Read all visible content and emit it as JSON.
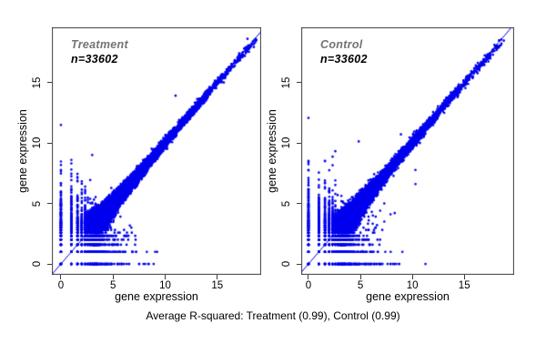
{
  "figure": {
    "background": "#ffffff",
    "caption": "Average R-squared: Treatment (0.99), Control (0.99)"
  },
  "chart_data": [
    {
      "type": "scatter",
      "title": "Treatment",
      "title_color": "#737373",
      "n_label": "n=33602",
      "n_points": 33602,
      "r_squared": 0.99,
      "xlabel": "gene expression",
      "ylabel": "gene expression",
      "x_ticks": [
        0,
        5,
        10,
        15
      ],
      "y_ticks": [
        0,
        5,
        10,
        15
      ],
      "xlim": [
        -0.87,
        19.21
      ],
      "ylim": [
        -0.9,
        19.55
      ],
      "point_color": "#0000ee",
      "line_color": "#0000ee",
      "identity_line": true,
      "seed": 1001,
      "distribution": {
        "kind": "log2-expression pairs along identity line, dense low-value cluster with discrete log2 count stripes",
        "exp_mean": 3.0,
        "max_value": 18.7,
        "noise_base": 0.13,
        "noise_low": 1.15,
        "noise_decay": 2.4,
        "tail_frac": 0.08,
        "tail_mult": 2.8,
        "quant_below": 4.7,
        "high_bias_start": 14,
        "high_bias_slope": 0.03
      },
      "outliers": [
        [
          3.0,
          9.0
        ],
        [
          11.0,
          13.9
        ],
        [
          2.0,
          5.9
        ],
        [
          4.6,
          1.0
        ],
        [
          5.0,
          2.3
        ],
        [
          1.58,
          0
        ],
        [
          2.0,
          0
        ],
        [
          2.32,
          0
        ],
        [
          2.58,
          0
        ],
        [
          2.81,
          0
        ],
        [
          3.0,
          0
        ],
        [
          0,
          4.9
        ],
        [
          0,
          5.3
        ],
        [
          1.0,
          4.6
        ],
        [
          17.9,
          18.6
        ]
      ]
    },
    {
      "type": "scatter",
      "title": "Control",
      "title_color": "#737373",
      "n_label": "n=33602",
      "n_points": 33602,
      "r_squared": 0.99,
      "xlabel": "gene expression",
      "ylabel": "gene expression",
      "x_ticks": [
        0,
        5,
        10,
        15
      ],
      "y_ticks": [
        0,
        5,
        10,
        15
      ],
      "xlim": [
        -0.7,
        19.8
      ],
      "ylim": [
        -0.9,
        19.55
      ],
      "point_color": "#0000ee",
      "line_color": "#0000ee",
      "identity_line": true,
      "seed": 2002,
      "distribution": {
        "kind": "log2-expression pairs along identity line, dense low-value cluster with discrete log2 count stripes, extra dropouts below diagonal",
        "exp_mean": 3.0,
        "max_value": 18.7,
        "noise_base": 0.13,
        "noise_low": 1.15,
        "noise_decay": 2.4,
        "tail_frac": 0.09,
        "tail_mult": 2.8,
        "quant_below": 4.7,
        "high_bias_start": 14,
        "high_bias_slope": 0.05
      },
      "outliers": [
        [
          0,
          4.2
        ],
        [
          0,
          3.9
        ],
        [
          1.0,
          4.4
        ],
        [
          5.5,
          4.3
        ],
        [
          6.2,
          4.0
        ],
        [
          6.9,
          4.4
        ],
        [
          7.3,
          3.5
        ],
        [
          7.9,
          4.1
        ],
        [
          6.6,
          3.2
        ],
        [
          8.3,
          4.2
        ],
        [
          5.8,
          3.6
        ],
        [
          5.3,
          3.0
        ],
        [
          4.9,
          3.5
        ],
        [
          6.1,
          4.3
        ],
        [
          7.3,
          5.0
        ],
        [
          2.0,
          0
        ],
        [
          2.32,
          0
        ],
        [
          2.58,
          0
        ],
        [
          2.81,
          0
        ],
        [
          3.0,
          0
        ],
        [
          3.32,
          0
        ],
        [
          4.6,
          0
        ],
        [
          5.0,
          0
        ],
        [
          5.5,
          0
        ],
        [
          6.3,
          0
        ],
        [
          7.9,
          0
        ],
        [
          10.3,
          6.6
        ],
        [
          8.9,
          10.7
        ]
      ]
    }
  ]
}
